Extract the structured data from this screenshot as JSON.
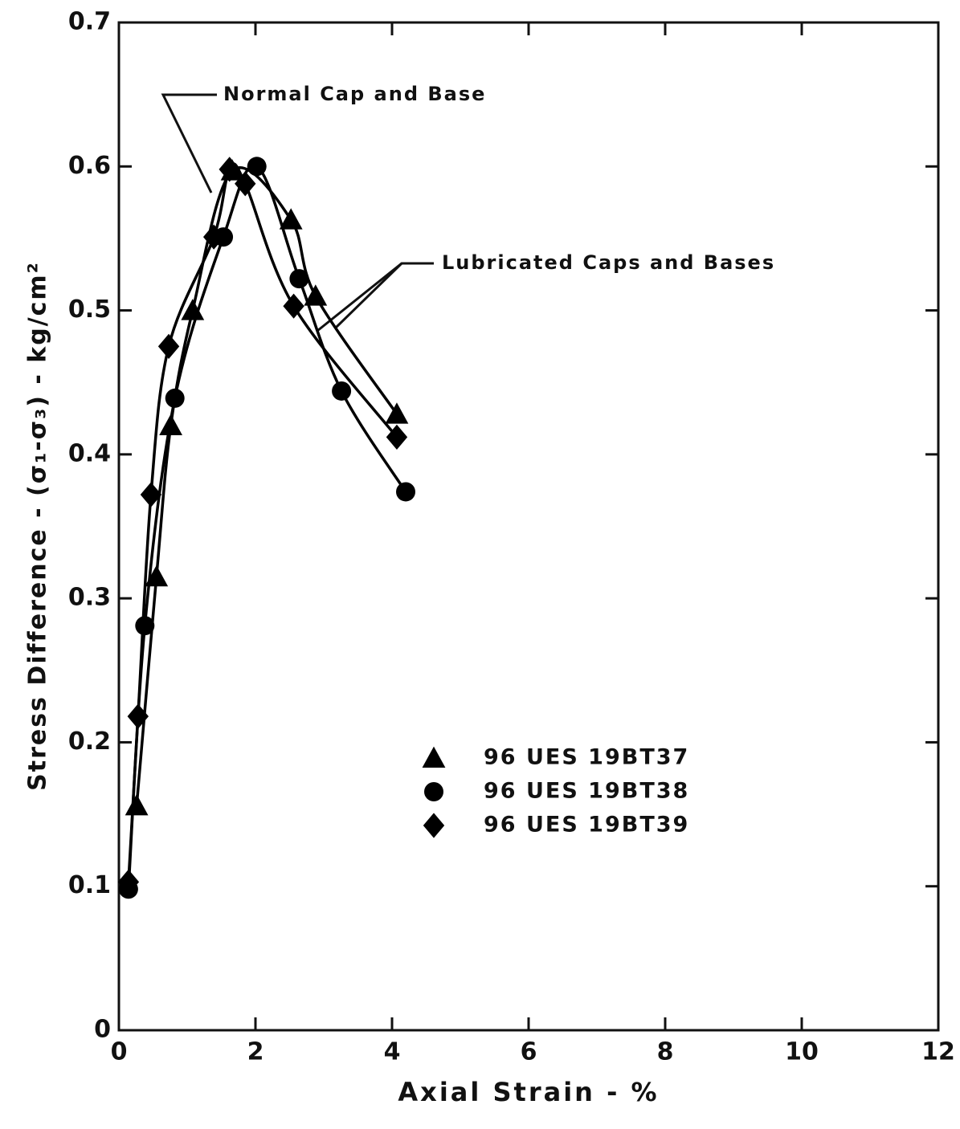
{
  "chart_data": {
    "type": "line",
    "xlabel": "Axial Strain - %",
    "ylabel": "Stress Difference - (σ₁-σ₃) - kg/cm²",
    "annotations": [
      "Normal Cap and Base",
      "Lubricated Caps and Bases"
    ],
    "xlim": [
      0,
      12
    ],
    "xticks": [
      0,
      2,
      4,
      6,
      8,
      10,
      12
    ],
    "ylim": [
      0,
      0.7
    ],
    "yticks": [
      0,
      0.1,
      0.2,
      0.3,
      0.4,
      0.5,
      0.6,
      0.7
    ],
    "grid": false,
    "series": [
      {
        "name": "96 UES 19BT37",
        "color": "#000000",
        "marker": "triangle",
        "x": [
          0.26,
          0.55,
          0.76,
          1.08,
          1.66,
          2.52,
          2.88,
          4.07
        ],
        "values": [
          0.156,
          0.315,
          0.42,
          0.5,
          0.597,
          0.563,
          0.51,
          0.428
        ]
      },
      {
        "name": "96 UES 19BT38",
        "color": "#000000",
        "marker": "circle",
        "x": [
          0.14,
          0.38,
          0.82,
          1.53,
          2.02,
          2.64,
          3.26,
          4.2
        ],
        "values": [
          0.098,
          0.281,
          0.439,
          0.551,
          0.6,
          0.522,
          0.444,
          0.374
        ]
      },
      {
        "name": "96 UES 19BT39",
        "color": "#000000",
        "marker": "diamond",
        "x": [
          0.14,
          0.28,
          0.47,
          0.73,
          1.39,
          1.62,
          1.85,
          2.56,
          4.07
        ],
        "values": [
          0.103,
          0.218,
          0.372,
          0.475,
          0.551,
          0.598,
          0.588,
          0.503,
          0.412
        ]
      }
    ]
  }
}
